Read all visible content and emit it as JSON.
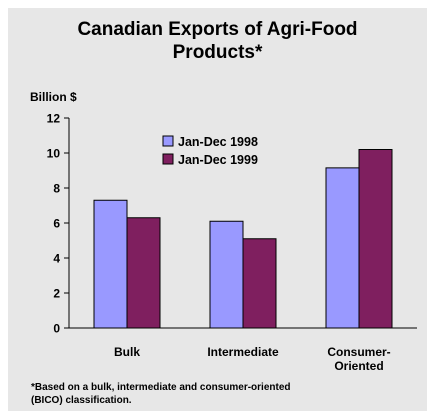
{
  "chart_data": {
    "type": "bar",
    "title_lines": [
      "Canadian Exports of Agri-Food",
      "Products*"
    ],
    "ylabel": "Billion $",
    "ylim": [
      0,
      12
    ],
    "yticks": [
      0,
      2,
      4,
      6,
      8,
      10,
      12
    ],
    "categories": [
      {
        "lines": [
          "Bulk"
        ]
      },
      {
        "lines": [
          "Intermediate"
        ]
      },
      {
        "lines": [
          "Consumer-",
          "Oriented"
        ]
      }
    ],
    "series": [
      {
        "name": "Jan-Dec 1998",
        "color": "#9999ff",
        "values": [
          7.3,
          6.1,
          9.15
        ]
      },
      {
        "name": "Jan-Dec 1999",
        "color": "#7f1f5f",
        "values": [
          6.3,
          5.1,
          10.2
        ]
      }
    ],
    "legend_position": "top-center",
    "grid": false,
    "footnote_lines": [
      "*Based on a bulk, intermediate and consumer-oriented",
      "(BICO) classification."
    ]
  }
}
